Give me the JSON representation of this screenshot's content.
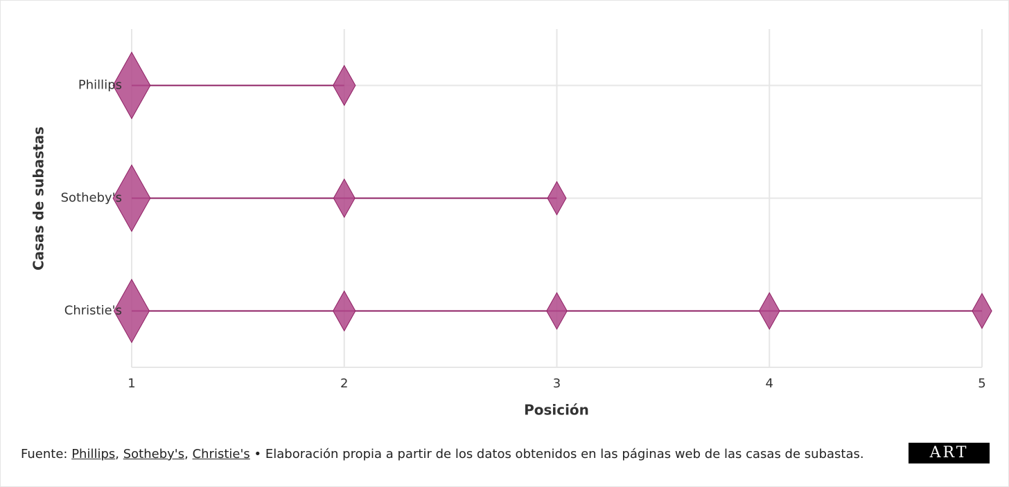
{
  "chart_data": {
    "type": "dot-line",
    "x_label": "Posición",
    "y_label": "Casas de subastas",
    "categories": [
      "Christie's",
      "Sotheby's",
      "Phillips"
    ],
    "series": [
      {
        "name": "Christie's",
        "color": "#b0488a",
        "x": [
          1,
          2,
          3,
          4,
          5
        ],
        "sizes": [
          1.9,
          1.2,
          1.1,
          1.1,
          1.05
        ]
      },
      {
        "name": "Sotheby's",
        "color": "#b0488a",
        "x": [
          1,
          2,
          3
        ],
        "sizes": [
          2,
          1.15,
          1
        ]
      },
      {
        "name": "Phillips",
        "color": "#b0488a",
        "x": [
          1,
          2
        ],
        "sizes": [
          2,
          1.2
        ]
      }
    ],
    "line_color": "#8e1f63",
    "xlim": [
      1,
      5
    ],
    "xticks": [
      1,
      2,
      3,
      4,
      5
    ],
    "grid": true
  },
  "footer": {
    "prefix": "Fuente:",
    "links": [
      "Phillips",
      "Sotheby's",
      "Christie's"
    ],
    "note": "• Elaboración propia a partir de los datos obtenidos en las páginas web de las casas de subastas.",
    "logo": "ART"
  }
}
